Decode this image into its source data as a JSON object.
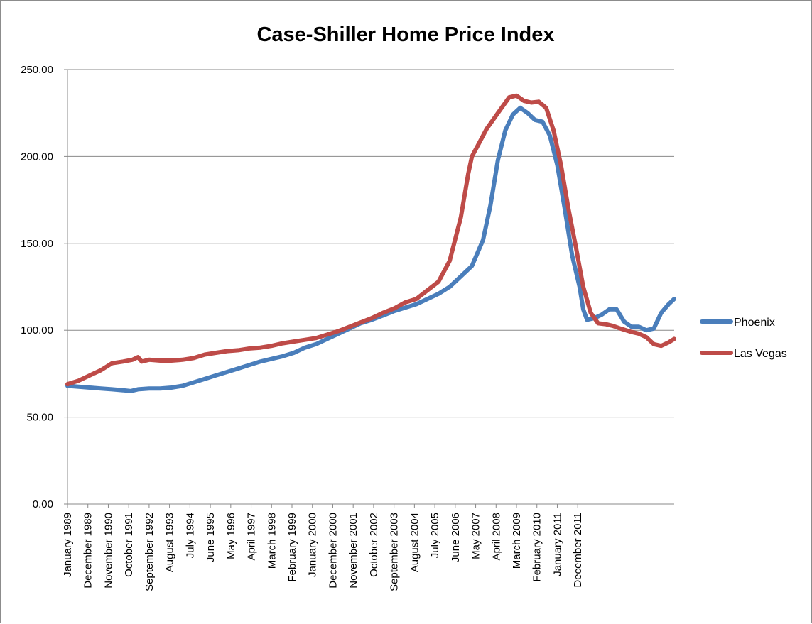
{
  "chart_data": {
    "type": "line",
    "title": "Case-Shiller Home Price Index",
    "xlabel": "",
    "ylabel": "",
    "ylim": [
      0,
      250
    ],
    "y_ticks": [
      "0.00",
      "50.00",
      "100.00",
      "150.00",
      "200.00",
      "250.00"
    ],
    "y_tick_values": [
      0,
      50,
      100,
      150,
      200,
      250
    ],
    "x_tick_labels": [
      "January 1989",
      "December 1989",
      "November 1990",
      "October 1991",
      "September 1992",
      "August 1993",
      "July 1994",
      "June 1995",
      "May 1996",
      "April 1997",
      "March 1998",
      "February 1999",
      "January 2000",
      "December 2000",
      "November 2001",
      "October 2002",
      "September 2003",
      "August 2004",
      "July 2005",
      "June 2006",
      "May 2007",
      "April 2008",
      "March 2009",
      "February 2010",
      "January 2011",
      "December 2011"
    ],
    "x_range_months": [
      0,
      281
    ],
    "grid": true,
    "legend_position": "right",
    "series": [
      {
        "name": "Phoenix",
        "color": "#4a7ebb",
        "points": [
          [
            0,
            68
          ],
          [
            6,
            67.5
          ],
          [
            12,
            67
          ],
          [
            18,
            66.5
          ],
          [
            24,
            66
          ],
          [
            30,
            65.5
          ],
          [
            34,
            65
          ],
          [
            38,
            66
          ],
          [
            44,
            66.5
          ],
          [
            50,
            66.5
          ],
          [
            56,
            67
          ],
          [
            62,
            68
          ],
          [
            68,
            70
          ],
          [
            74,
            72
          ],
          [
            80,
            74
          ],
          [
            86,
            76
          ],
          [
            92,
            78
          ],
          [
            98,
            80
          ],
          [
            104,
            82
          ],
          [
            110,
            83.5
          ],
          [
            116,
            85
          ],
          [
            122,
            87
          ],
          [
            128,
            90
          ],
          [
            134,
            92
          ],
          [
            140,
            95
          ],
          [
            146,
            98
          ],
          [
            152,
            101
          ],
          [
            158,
            104
          ],
          [
            164,
            106
          ],
          [
            170,
            108.5
          ],
          [
            176,
            111
          ],
          [
            182,
            113
          ],
          [
            188,
            115
          ],
          [
            194,
            118
          ],
          [
            200,
            121
          ],
          [
            206,
            125
          ],
          [
            212,
            131
          ],
          [
            218,
            137
          ],
          [
            224,
            152
          ],
          [
            228,
            172
          ],
          [
            232,
            198
          ],
          [
            236,
            215
          ],
          [
            240,
            224
          ],
          [
            244,
            228
          ],
          [
            248,
            225
          ],
          [
            252,
            221
          ],
          [
            254,
            220.5
          ],
          [
            256,
            220
          ],
          [
            260,
            212
          ],
          [
            264,
            195
          ],
          [
            268,
            170
          ],
          [
            272,
            143
          ],
          [
            276,
            125
          ],
          [
            278,
            112
          ],
          [
            280,
            106
          ],
          [
            284,
            107
          ],
          [
            288,
            109
          ],
          [
            292,
            112
          ],
          [
            296,
            112
          ],
          [
            300,
            105
          ],
          [
            304,
            102
          ],
          [
            308,
            102
          ],
          [
            312,
            100
          ],
          [
            316,
            101
          ],
          [
            320,
            110
          ],
          [
            324,
            115
          ],
          [
            327,
            118
          ]
        ]
      },
      {
        "name": "Las Vegas",
        "color": "#be4b48",
        "points": [
          [
            0,
            69
          ],
          [
            6,
            71
          ],
          [
            12,
            74
          ],
          [
            18,
            77
          ],
          [
            24,
            81
          ],
          [
            30,
            82
          ],
          [
            35,
            83
          ],
          [
            38,
            84.5
          ],
          [
            40,
            82
          ],
          [
            44,
            83
          ],
          [
            50,
            82.5
          ],
          [
            56,
            82.5
          ],
          [
            62,
            83
          ],
          [
            68,
            84
          ],
          [
            74,
            86
          ],
          [
            80,
            87
          ],
          [
            86,
            88
          ],
          [
            92,
            88.5
          ],
          [
            98,
            89.5
          ],
          [
            104,
            90
          ],
          [
            110,
            91
          ],
          [
            116,
            92.5
          ],
          [
            122,
            93.5
          ],
          [
            128,
            94.5
          ],
          [
            134,
            95.5
          ],
          [
            140,
            97.5
          ],
          [
            146,
            99.5
          ],
          [
            152,
            102
          ],
          [
            158,
            104.5
          ],
          [
            164,
            107
          ],
          [
            170,
            110
          ],
          [
            176,
            112.5
          ],
          [
            182,
            116
          ],
          [
            188,
            118
          ],
          [
            194,
            123
          ],
          [
            200,
            128
          ],
          [
            206,
            140
          ],
          [
            212,
            165
          ],
          [
            216,
            190
          ],
          [
            218,
            200
          ],
          [
            222,
            208
          ],
          [
            226,
            216
          ],
          [
            230,
            222
          ],
          [
            234,
            228
          ],
          [
            238,
            234
          ],
          [
            242,
            235
          ],
          [
            246,
            232
          ],
          [
            250,
            231
          ],
          [
            254,
            231.5
          ],
          [
            258,
            228
          ],
          [
            262,
            215
          ],
          [
            266,
            195
          ],
          [
            270,
            170
          ],
          [
            274,
            148
          ],
          [
            278,
            125
          ],
          [
            282,
            110
          ],
          [
            286,
            104
          ],
          [
            290,
            103.5
          ],
          [
            294,
            102.5
          ],
          [
            298,
            101
          ],
          [
            304,
            99
          ],
          [
            308,
            98
          ],
          [
            312,
            96
          ],
          [
            316,
            92
          ],
          [
            320,
            91
          ],
          [
            324,
            93
          ],
          [
            327,
            95
          ]
        ]
      }
    ]
  }
}
